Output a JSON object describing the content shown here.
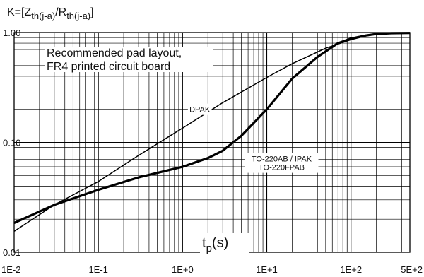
{
  "chart_data": {
    "type": "line",
    "x_scale": "log",
    "y_scale": "log",
    "xlim": [
      0.01,
      500
    ],
    "ylim": [
      0.01,
      1.0
    ],
    "grid": true,
    "ylabel": {
      "prefix": "K=[Z",
      "sub1": "th(j-a)",
      "middle": "/R",
      "sub2": "th(j-a)",
      "suffix": "]"
    },
    "xlabel": {
      "main": "t",
      "sub": "p",
      "suffix": "(s)"
    },
    "x_tick_labels": [
      "1E-2",
      "1E-1",
      "1E+0",
      "1E+1",
      "1E+2",
      "5E+2"
    ],
    "x_tick_values": [
      0.01,
      0.1,
      1,
      10,
      100,
      500
    ],
    "y_tick_labels": [
      "0.01",
      "0.10",
      "1.00"
    ],
    "y_tick_values": [
      0.01,
      0.1,
      1.0
    ],
    "annotation_lines": [
      "Recommended pad layout,",
      "FR4 printed circuit board"
    ],
    "series": [
      {
        "name": "DPAK",
        "points": [
          [
            0.01,
            0.0155
          ],
          [
            0.03,
            0.027
          ],
          [
            0.1,
            0.044
          ],
          [
            0.3,
            0.076
          ],
          [
            1,
            0.135
          ],
          [
            3,
            0.23
          ],
          [
            10,
            0.39
          ],
          [
            20,
            0.52
          ],
          [
            50,
            0.72
          ],
          [
            100,
            0.86
          ],
          [
            150,
            0.93
          ],
          [
            200,
            0.96
          ],
          [
            300,
            0.98
          ],
          [
            500,
            0.985
          ]
        ]
      },
      {
        "name": "TO-220AB / IPAK\nTO-220FPAB",
        "points": [
          [
            0.01,
            0.0185
          ],
          [
            0.03,
            0.027
          ],
          [
            0.1,
            0.037
          ],
          [
            0.3,
            0.048
          ],
          [
            1,
            0.06
          ],
          [
            2,
            0.072
          ],
          [
            3,
            0.084
          ],
          [
            5,
            0.115
          ],
          [
            10,
            0.2
          ],
          [
            20,
            0.38
          ],
          [
            40,
            0.6
          ],
          [
            70,
            0.8
          ],
          [
            100,
            0.88
          ],
          [
            150,
            0.94
          ],
          [
            200,
            0.97
          ],
          [
            300,
            0.985
          ],
          [
            500,
            0.99
          ]
        ]
      }
    ],
    "series_labels": [
      {
        "series": "DPAK",
        "lines": [
          "DPAK"
        ],
        "at": [
          1.6,
          0.2
        ]
      },
      {
        "series": "TO-220AB / IPAK\nTO-220FPAB",
        "lines": [
          "TO-220AB / IPAK",
          "TO-220FPAB"
        ],
        "at": [
          15,
          0.065
        ]
      }
    ]
  }
}
